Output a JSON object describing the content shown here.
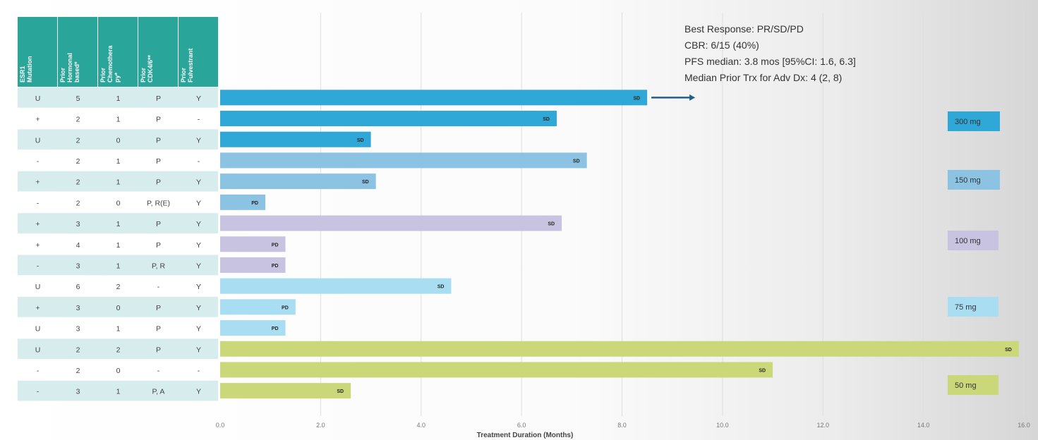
{
  "colors": {
    "header_bg": "#2aa59a",
    "row_even": "#ffffff",
    "row_odd": "#d7ecec",
    "gridline": "#dedede",
    "arrow": "#1f5f8f",
    "dose_colors": {
      "300 mg": "#2fa7d7",
      "150 mg": "#8dc3e2",
      "100 mg": "#c9c3e2",
      "75 mg": "#a9def2",
      "50 mg": "#cbd87a"
    }
  },
  "table": {
    "headers": [
      "ESR1 Mutation",
      "Prior Hormonal based*",
      "Prior Chemothera py*",
      "Prior CDK4/6**",
      "Prior Fulvestrant"
    ],
    "rows": [
      [
        "U",
        "5",
        "1",
        "P",
        "Y"
      ],
      [
        "+",
        "2",
        "1",
        "P",
        "-"
      ],
      [
        "U",
        "2",
        "0",
        "P",
        "Y"
      ],
      [
        "-",
        "2",
        "1",
        "P",
        "-"
      ],
      [
        "+",
        "2",
        "1",
        "P",
        "Y"
      ],
      [
        "-",
        "2",
        "0",
        "P, R(E)",
        "Y"
      ],
      [
        "+",
        "3",
        "1",
        "P",
        "Y"
      ],
      [
        "+",
        "4",
        "1",
        "P",
        "Y"
      ],
      [
        "-",
        "3",
        "1",
        "P, R",
        "Y"
      ],
      [
        "U",
        "6",
        "2",
        "-",
        "Y"
      ],
      [
        "+",
        "3",
        "0",
        "P",
        "Y"
      ],
      [
        "U",
        "3",
        "1",
        "P",
        "Y"
      ],
      [
        "U",
        "2",
        "2",
        "P",
        "Y"
      ],
      [
        "-",
        "2",
        "0",
        "-",
        "-"
      ],
      [
        "-",
        "3",
        "1",
        "P, A",
        "Y"
      ]
    ]
  },
  "info_lines": [
    "Best Response: PR/SD/PD",
    "CBR: 6/15 (40%)",
    "PFS median: 3.8 mos [95%CI: 1.6, 6.3]",
    "Median Prior Trx for Adv Dx: 4 (2, 8)"
  ],
  "chart_data": {
    "type": "bar",
    "orientation": "horizontal",
    "xlabel": "Treatment Duration (Months)",
    "xlim": [
      0,
      16
    ],
    "xticks": [
      "0.0",
      "2.0",
      "4.0",
      "6.0",
      "8.0",
      "10.0",
      "12.0",
      "14.0",
      "16.0"
    ],
    "grid": true,
    "bars": [
      {
        "value": 8.5,
        "label": "SD",
        "dose": "300 mg",
        "ongoing": true
      },
      {
        "value": 6.7,
        "label": "SD",
        "dose": "300 mg"
      },
      {
        "value": 3.0,
        "label": "SD",
        "dose": "300 mg"
      },
      {
        "value": 7.3,
        "label": "SD",
        "dose": "150 mg"
      },
      {
        "value": 3.1,
        "label": "SD",
        "dose": "150 mg"
      },
      {
        "value": 0.9,
        "label": "PD",
        "dose": "150 mg"
      },
      {
        "value": 6.8,
        "label": "SD",
        "dose": "100 mg"
      },
      {
        "value": 1.3,
        "label": "PD",
        "dose": "100 mg"
      },
      {
        "value": 1.3,
        "label": "PD",
        "dose": "100 mg"
      },
      {
        "value": 4.6,
        "label": "SD",
        "dose": "75 mg"
      },
      {
        "value": 1.5,
        "label": "PD",
        "dose": "75 mg"
      },
      {
        "value": 1.3,
        "label": "PD",
        "dose": "75 mg"
      },
      {
        "value": 15.9,
        "label": "SD",
        "dose": "50 mg"
      },
      {
        "value": 11.0,
        "label": "SD",
        "dose": "50 mg"
      },
      {
        "value": 2.6,
        "label": "SD",
        "dose": "50 mg"
      }
    ],
    "dose_legend": [
      "300 mg",
      "150 mg",
      "100 mg",
      "75 mg",
      "50 mg"
    ]
  }
}
